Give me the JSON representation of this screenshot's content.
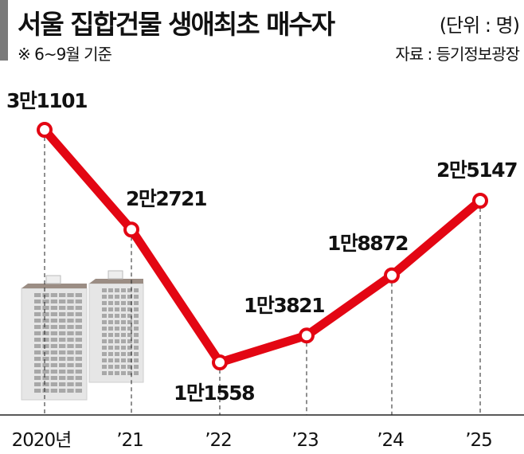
{
  "chart_data": {
    "type": "line",
    "title": "서울 집합건물 생애최초 매수자",
    "unit": "(단위 : 명)",
    "note": "※ 6~9월 기준",
    "source": "자료 : 등기정보광장",
    "categories": [
      "2020년",
      "’21",
      "’22",
      "’23",
      "’24",
      "’25"
    ],
    "values": [
      31101,
      22721,
      11558,
      13821,
      18872,
      25147
    ],
    "data_labels": [
      "3만1101",
      "2만2721",
      "1만1558",
      "1만3821",
      "1만8872",
      "2만5147"
    ],
    "line_color": "#e30613",
    "grid": false
  }
}
